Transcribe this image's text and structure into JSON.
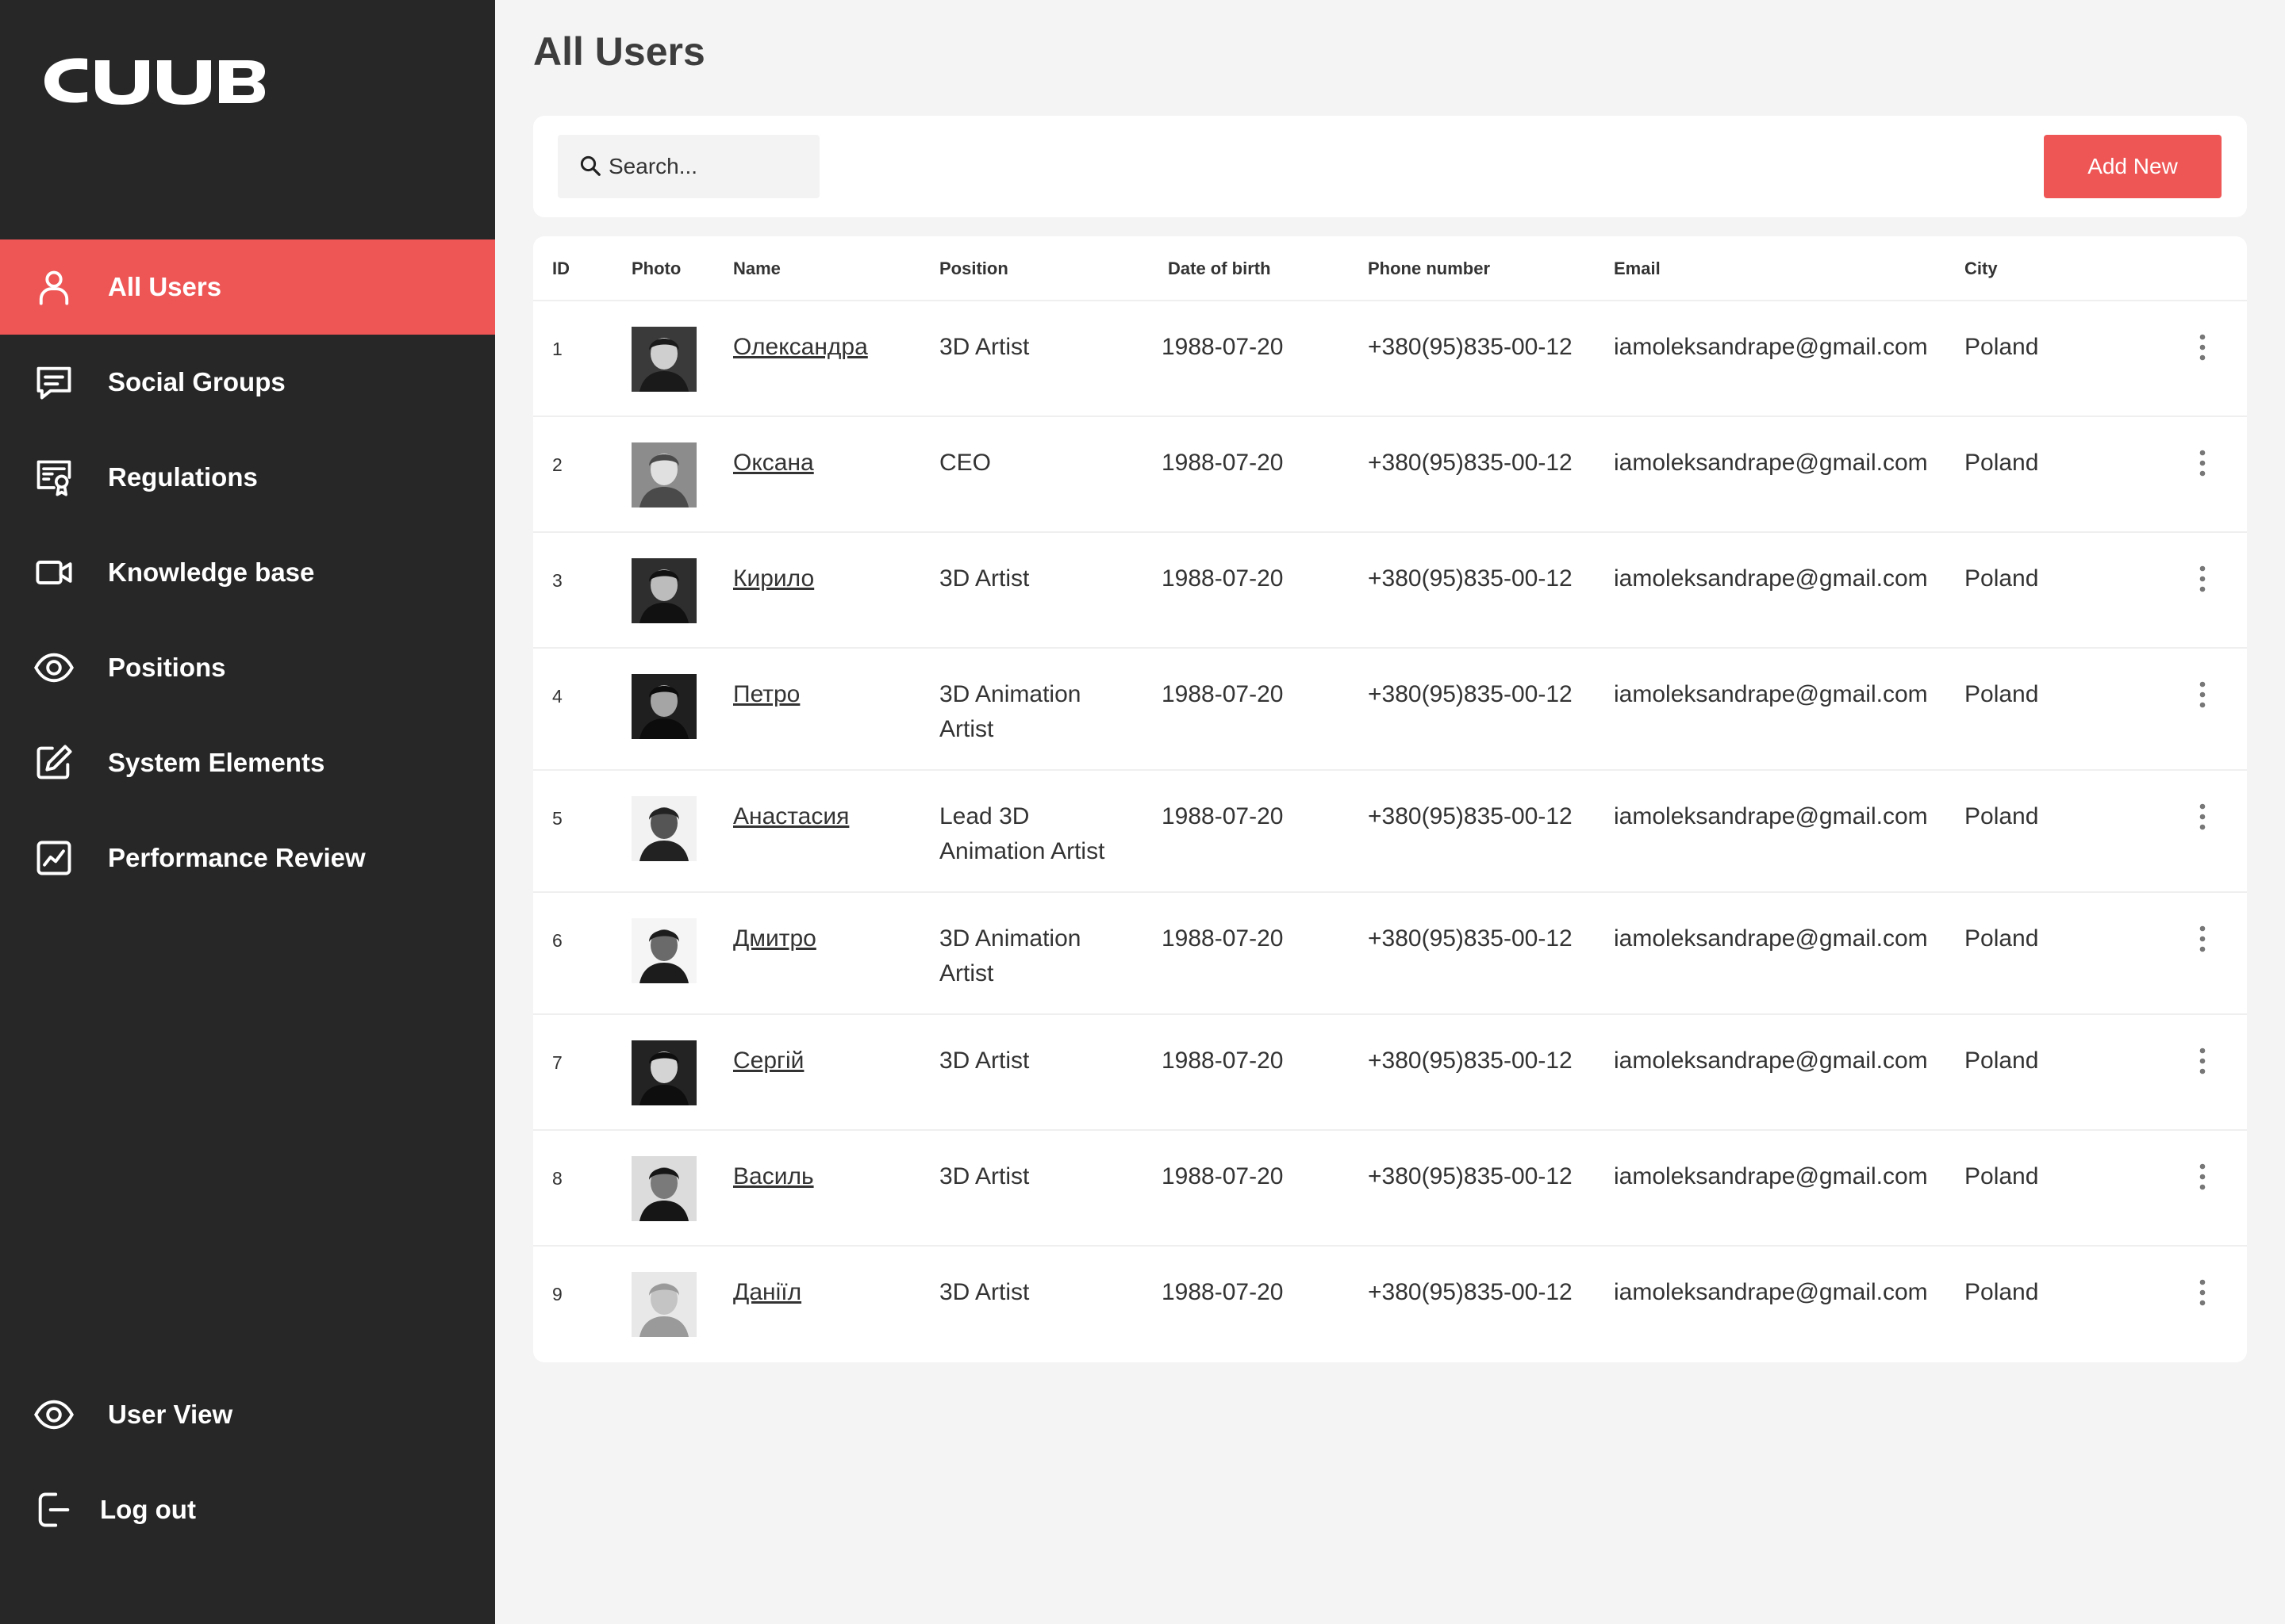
{
  "brand": {
    "logo_text": "CUUB"
  },
  "sidebar": {
    "items": [
      {
        "label": "All Users",
        "icon": "user-icon",
        "active": true
      },
      {
        "label": "Social Groups",
        "icon": "chat-icon",
        "active": false
      },
      {
        "label": "Regulations",
        "icon": "certificate-icon",
        "active": false
      },
      {
        "label": "Knowledge base",
        "icon": "video-icon",
        "active": false
      },
      {
        "label": "Positions",
        "icon": "eye-icon",
        "active": false
      },
      {
        "label": "System Elements",
        "icon": "edit-icon",
        "active": false
      },
      {
        "label": "Performance Review",
        "icon": "chart-icon",
        "active": false
      }
    ],
    "bottom_items": [
      {
        "label": "User View",
        "icon": "eye-icon"
      },
      {
        "label": "Log out",
        "icon": "logout-icon"
      }
    ]
  },
  "page": {
    "title": "All Users"
  },
  "toolbar": {
    "search_placeholder": "Search...",
    "add_label": "Add New"
  },
  "table": {
    "columns": [
      "ID",
      "Photo",
      "Name",
      "Position",
      "Date of birth",
      "Phone number",
      "Email",
      "City"
    ],
    "rows": [
      {
        "id": "1",
        "name": "Олександра",
        "position": "3D Artist",
        "dob": "1988-07-20",
        "phone": "+380(95)835-00-12",
        "email": "iamoleksandrape@gmail.com",
        "city": "Poland"
      },
      {
        "id": "2",
        "name": "Оксана",
        "position": "CEO",
        "dob": "1988-07-20",
        "phone": "+380(95)835-00-12",
        "email": "iamoleksandrape@gmail.com",
        "city": "Poland"
      },
      {
        "id": "3",
        "name": "Кирило",
        "position": "3D Artist",
        "dob": "1988-07-20",
        "phone": "+380(95)835-00-12",
        "email": "iamoleksandrape@gmail.com",
        "city": "Poland"
      },
      {
        "id": "4",
        "name": "Петро",
        "position": "3D Animation Artist",
        "dob": "1988-07-20",
        "phone": "+380(95)835-00-12",
        "email": "iamoleksandrape@gmail.com",
        "city": "Poland"
      },
      {
        "id": "5",
        "name": "Анастасия",
        "position": "Lead 3D Animation Artist",
        "dob": "1988-07-20",
        "phone": "+380(95)835-00-12",
        "email": "iamoleksandrape@gmail.com",
        "city": "Poland"
      },
      {
        "id": "6",
        "name": "Дмитро",
        "position": "3D Animation Artist",
        "dob": "1988-07-20",
        "phone": "+380(95)835-00-12",
        "email": "iamoleksandrape@gmail.com",
        "city": "Poland"
      },
      {
        "id": "7",
        "name": "Сергій",
        "position": "3D Artist",
        "dob": "1988-07-20",
        "phone": "+380(95)835-00-12",
        "email": "iamoleksandrape@gmail.com",
        "city": "Poland"
      },
      {
        "id": "8",
        "name": "Василь",
        "position": "3D Artist",
        "dob": "1988-07-20",
        "phone": "+380(95)835-00-12",
        "email": "iamoleksandrape@gmail.com",
        "city": "Poland"
      },
      {
        "id": "9",
        "name": "Даніїл",
        "position": "3D Artist",
        "dob": "1988-07-20",
        "phone": "+380(95)835-00-12",
        "email": "iamoleksandrape@gmail.com",
        "city": "Poland"
      }
    ]
  },
  "colors": {
    "sidebar_bg": "#272727",
    "accent": "#ee5656",
    "page_bg": "#f4f4f4",
    "card_bg": "#ffffff"
  }
}
